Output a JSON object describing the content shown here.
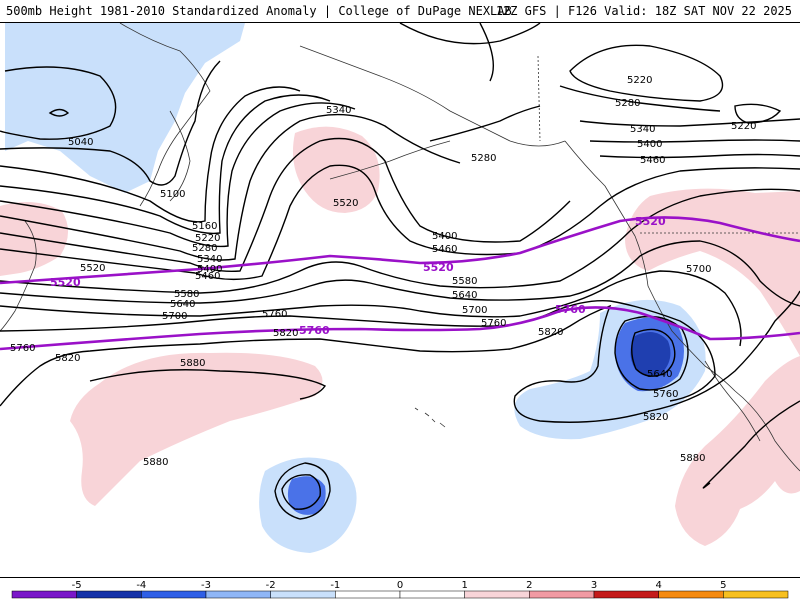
{
  "header": {
    "left_title": "500mb Height 1981-2010 Standardized Anomaly | College of DuPage NEXLAB",
    "right_title": "12Z GFS | F126 Valid: 18Z SAT NOV 22 2025"
  },
  "colors": {
    "neg_strong": "#1f3fb0",
    "neg_mid": "#4a72e8",
    "neg_light": "#c9e0fb",
    "pos_light": "#f8d4d8",
    "highlight_contour": "#9a11c8",
    "contour": "#000000"
  },
  "contour_labels": {
    "l5040": "5040",
    "l5100": "5100",
    "l5160": "5160",
    "l5220a": "5220",
    "l5280a": "5280",
    "l5340a": "5340",
    "l5400a": "5400",
    "l5460a": "5460",
    "l5520a": "5520",
    "l5580a": "5580",
    "l5640a": "5640",
    "l5700a": "5700",
    "l5760a": "5760",
    "l5820a": "5820",
    "l5880a": "5880",
    "l5340b": "5340",
    "l5520b": "5520",
    "l5280b": "5280",
    "l5400b": "5400",
    "l5460b": "5460",
    "l5520c": "5520",
    "l5580b": "5580",
    "l5640b": "5640",
    "l5700b": "5700",
    "l5760b": "5760",
    "l5820b": "5820",
    "l5220b": "5220",
    "l5280c": "5280",
    "l5220c": "5220",
    "l5340c": "5340",
    "l5400c": "5400",
    "l5460c": "5460",
    "l5520d": "5520",
    "l5700c": "5700",
    "l5760c": "5760",
    "l5640c": "5640",
    "l5760d": "5760",
    "l5820c": "5820",
    "l5880b": "5880",
    "l5880c": "5880",
    "l5760e": "5760",
    "l5520e": "5520",
    "l5520f": "5520",
    "l5820d": "5820"
  },
  "colorbar": {
    "ticks": [
      "-5",
      "-4",
      "-3",
      "-2",
      "-1",
      "0",
      "1",
      "2",
      "3",
      "4",
      "5"
    ],
    "bins": [
      "#7a17c9",
      "#1532a8",
      "#2f5fe6",
      "#8fb6f6",
      "#c9e0fb",
      "#ffffff",
      "#ffffff",
      "#f8d4d8",
      "#f19aa3",
      "#c41a1a",
      "#f58a10",
      "#f7c020"
    ]
  }
}
